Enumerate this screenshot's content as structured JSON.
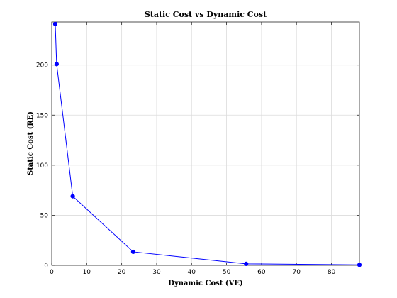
{
  "chart_data": {
    "type": "line",
    "title": "Static Cost vs Dynamic Cost",
    "xlabel": "Dynamic Cost (VE)",
    "ylabel": "Static Cost (RE)",
    "xlim": [
      0,
      88
    ],
    "ylim": [
      0,
      243
    ],
    "xticks": [
      0,
      10,
      20,
      30,
      40,
      50,
      60,
      70,
      80
    ],
    "yticks": [
      0,
      50,
      100,
      150,
      200
    ],
    "grid": true,
    "legend": "none",
    "series": [
      {
        "color": "#0000ff",
        "marker": "circle",
        "x": [
          1.0,
          1.4,
          6.0,
          23.3,
          55.6,
          88.0
        ],
        "y": [
          241,
          201,
          69,
          13.5,
          1.5,
          0.5
        ]
      }
    ]
  }
}
